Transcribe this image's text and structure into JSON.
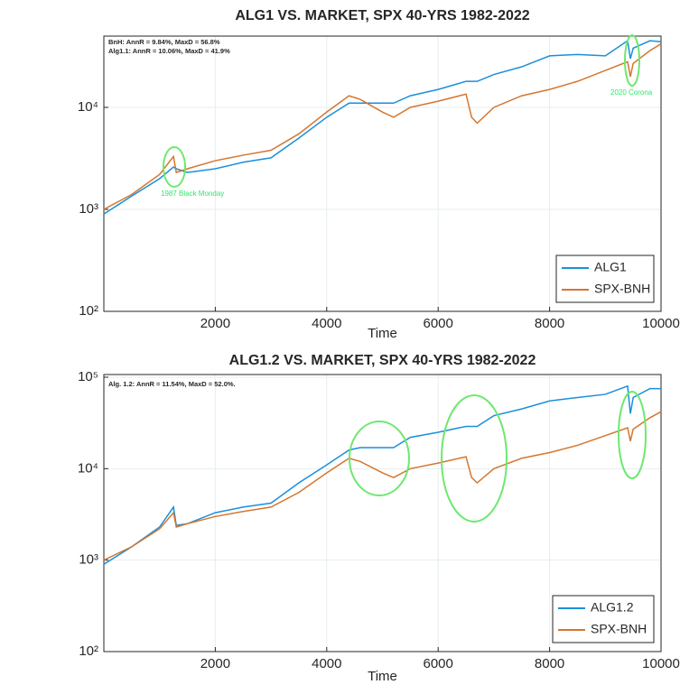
{
  "chart_data": [
    {
      "type": "line",
      "title": "ALG1 VS. MARKET, SPX 40-YRS 1982-2022",
      "xlabel": "Time",
      "annotations": [
        "BnH: AnnR = 9.84%, MaxD = 56.8%",
        "Alg1.1: AnnR = 10.06%, MaxD = 41.9%",
        "1987 Black Monday",
        "2020 Corona"
      ],
      "x": [
        0,
        500,
        1000,
        1250,
        1300,
        1500,
        2000,
        2500,
        3000,
        3500,
        4000,
        4400,
        4600,
        5000,
        5200,
        5500,
        6000,
        6500,
        6600,
        6700,
        7000,
        7500,
        8000,
        8500,
        9000,
        9400,
        9450,
        9500,
        9800,
        10000
      ],
      "series": [
        {
          "name": "ALG1",
          "color": "#1a8fdc",
          "values": [
            900,
            1350,
            2000,
            2600,
            2500,
            2300,
            2500,
            2900,
            3200,
            5000,
            8000,
            11000,
            11000,
            11000,
            11000,
            13000,
            15000,
            18000,
            18000,
            18000,
            21000,
            25000,
            32000,
            33000,
            32000,
            45000,
            30000,
            38000,
            45000,
            44000
          ]
        },
        {
          "name": "SPX-BNH",
          "color": "#d5762f",
          "values": [
            1000,
            1400,
            2200,
            3300,
            2300,
            2500,
            3000,
            3400,
            3800,
            5500,
            9000,
            13000,
            12000,
            9000,
            8000,
            10000,
            11500,
            13500,
            8000,
            7000,
            10000,
            13000,
            15000,
            18000,
            23000,
            28000,
            20000,
            27000,
            36000,
            42000
          ]
        }
      ],
      "xlim": [
        0,
        10000
      ],
      "xticks": [
        2000,
        4000,
        6000,
        8000,
        10000
      ],
      "ylim": [
        100,
        50000
      ],
      "log_y": true,
      "yticks": [
        {
          "value": 100,
          "label": "10²"
        },
        {
          "value": 1000,
          "label": "10³"
        },
        {
          "value": 10000,
          "label": "10⁴"
        }
      ],
      "grid": true,
      "legend": "lower right"
    },
    {
      "type": "line",
      "title": "ALG1.2 VS. MARKET, SPX 40-YRS 1982-2022",
      "xlabel": "Time",
      "annotations": [
        "Alg. 1.2: AnnR = 11.54%, MaxD = 52.0%."
      ],
      "x": [
        0,
        500,
        1000,
        1250,
        1300,
        1500,
        2000,
        2500,
        3000,
        3500,
        4000,
        4400,
        4600,
        5000,
        5200,
        5500,
        6000,
        6500,
        6600,
        6700,
        7000,
        7500,
        8000,
        8500,
        9000,
        9400,
        9450,
        9500,
        9800,
        10000
      ],
      "series": [
        {
          "name": "ALG1.2",
          "color": "#1a8fdc",
          "values": [
            900,
            1400,
            2300,
            3800,
            2400,
            2500,
            3300,
            3800,
            4200,
            7000,
            11000,
            16000,
            17000,
            17000,
            17000,
            22000,
            25000,
            29000,
            29000,
            29000,
            38000,
            45000,
            55000,
            60000,
            65000,
            80000,
            40000,
            60000,
            75000,
            75000
          ]
        },
        {
          "name": "SPX-BNH",
          "color": "#d5762f",
          "values": [
            1000,
            1400,
            2200,
            3300,
            2300,
            2500,
            3000,
            3400,
            3800,
            5500,
            9000,
            13000,
            12000,
            9000,
            8000,
            10000,
            11500,
            13500,
            8000,
            7000,
            10000,
            13000,
            15000,
            18000,
            23000,
            28000,
            20000,
            27000,
            36000,
            42000
          ]
        }
      ],
      "xlim": [
        0,
        10000
      ],
      "xticks": [
        2000,
        4000,
        6000,
        8000,
        10000
      ],
      "ylim": [
        100,
        107000
      ],
      "log_y": true,
      "yticks": [
        {
          "value": 100,
          "label": "10²"
        },
        {
          "value": 1000,
          "label": "10³"
        },
        {
          "value": 10000,
          "label": "10⁴"
        },
        {
          "value": 100000,
          "label": "10⁵"
        }
      ],
      "grid": true,
      "legend": "lower right"
    }
  ]
}
